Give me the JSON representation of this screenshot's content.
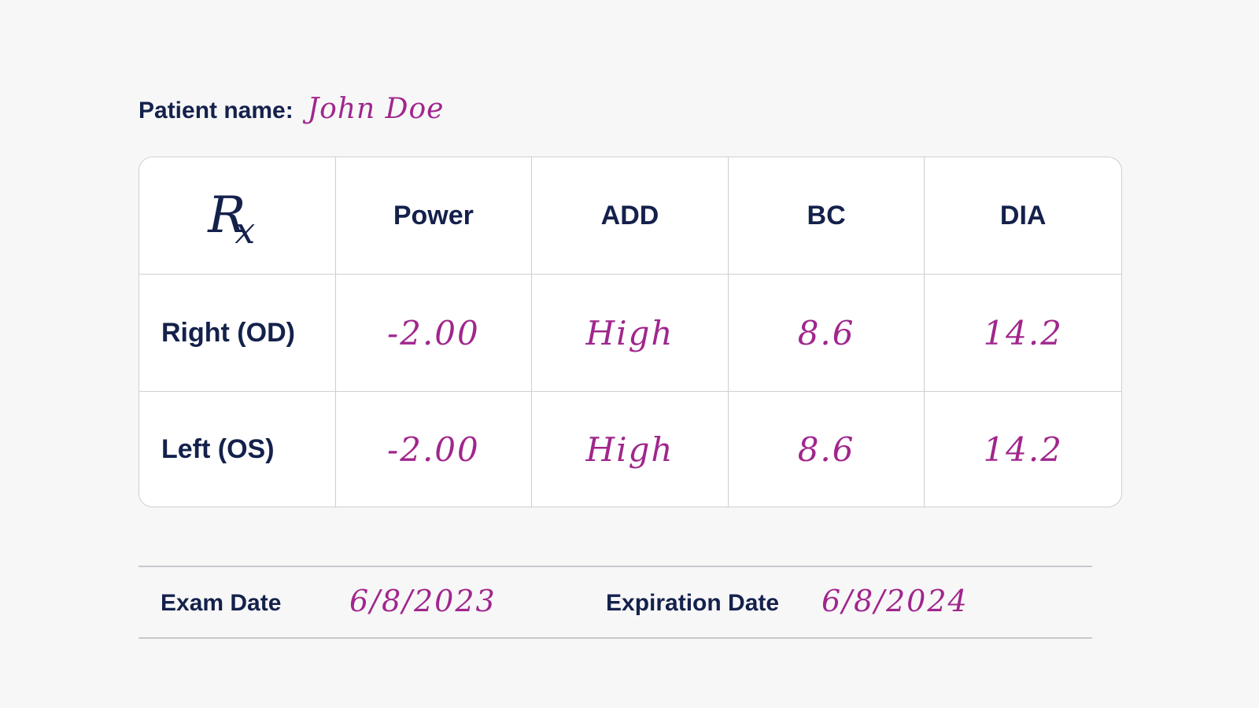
{
  "patient": {
    "label": "Patient name:",
    "name": "John Doe"
  },
  "prescription": {
    "symbol_main": "R",
    "symbol_sub": "x",
    "columns": [
      "Power",
      "ADD",
      "BC",
      "DIA"
    ],
    "rows": [
      {
        "label": "Right (OD)",
        "values": [
          "-2.00",
          "High",
          "8.6",
          "14.2"
        ]
      },
      {
        "label": "Left (OS)",
        "values": [
          "-2.00",
          "High",
          "8.6",
          "14.2"
        ]
      }
    ]
  },
  "dates": {
    "exam_label": "Exam Date",
    "exam_value": "6/8/2023",
    "expiration_label": "Expiration Date",
    "expiration_value": "6/8/2024"
  },
  "colors": {
    "ink_navy": "#14214b",
    "handwriting_magenta": "#a0268c",
    "border_gray": "#cfcfd3",
    "background": "#f7f7f8"
  }
}
